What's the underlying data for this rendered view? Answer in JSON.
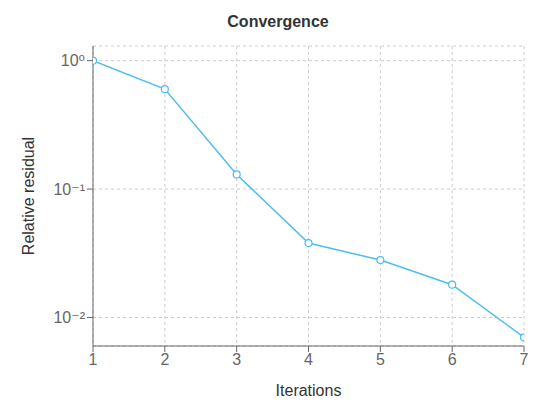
{
  "chart_data": {
    "type": "line",
    "title": "Convergence",
    "x_label": "Iterations",
    "y_label": "Relative residual",
    "x": [
      1,
      2,
      3,
      4,
      5,
      6,
      7
    ],
    "values": [
      1.0,
      0.6,
      0.13,
      0.038,
      0.028,
      0.018,
      0.007
    ],
    "color": "#4DBEEE",
    "marker": "circle",
    "log": "y",
    "grid": true,
    "xlim": [
      1,
      7
    ],
    "xticks": [
      1,
      2,
      3,
      4,
      5,
      6,
      7
    ],
    "ylim": [
      0.006,
      1.3
    ],
    "yticks": [
      {
        "value": 0.01,
        "label": "10⁻²"
      },
      {
        "value": 0.1,
        "label": "10⁻¹"
      },
      {
        "value": 1,
        "label": "10⁰"
      }
    ]
  }
}
